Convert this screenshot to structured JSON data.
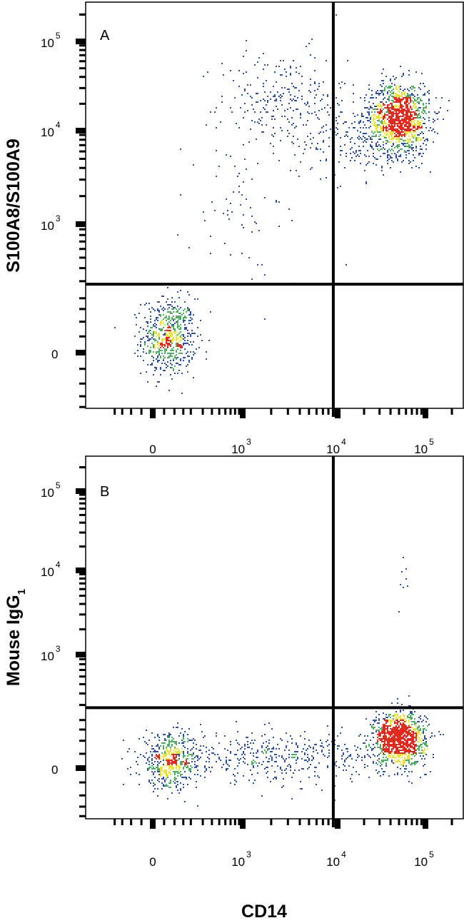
{
  "chart_data": [
    {
      "type": "scatter",
      "panel_label": "A",
      "xlabel": "",
      "ylabel": "S100A8/S100A9",
      "x_scale": "biexponential",
      "y_scale": "biexponential",
      "x_ticks": [
        {
          "base": "0",
          "exp": ""
        },
        {
          "base": "10",
          "exp": "3"
        },
        {
          "base": "10",
          "exp": "4"
        },
        {
          "base": "10",
          "exp": "5"
        }
      ],
      "y_ticks": [
        {
          "base": "0",
          "exp": ""
        },
        {
          "base": "10",
          "exp": "3"
        },
        {
          "base": "10",
          "exp": "4"
        },
        {
          "base": "10",
          "exp": "5"
        }
      ],
      "quadrant_gate": {
        "x": 9000,
        "y": 280
      },
      "populations": [
        {
          "x_center": 70,
          "y_center": 50,
          "count": 650
        },
        {
          "x_center": 2500,
          "y_center": 22000,
          "count": 260
        },
        {
          "x_center": 50000,
          "y_center": 14000,
          "count": 1300
        },
        {
          "x_center": 15000,
          "y_center": 8000,
          "count": 180
        },
        {
          "x_center": 1200,
          "y_center": 1500,
          "count": 70
        }
      ],
      "density_colors": [
        "#2f4fa0",
        "#4fae62",
        "#e8e23a",
        "#e02b1e"
      ]
    },
    {
      "type": "scatter",
      "panel_label": "B",
      "xlabel": "CD14",
      "ylabel": "Mouse IgG",
      "ylabel_sub": "1",
      "x_scale": "biexponential",
      "y_scale": "biexponential",
      "x_ticks": [
        {
          "base": "0",
          "exp": ""
        },
        {
          "base": "10",
          "exp": "3"
        },
        {
          "base": "10",
          "exp": "4"
        },
        {
          "base": "10",
          "exp": "5"
        }
      ],
      "y_ticks": [
        {
          "base": "0",
          "exp": ""
        },
        {
          "base": "10",
          "exp": "3"
        },
        {
          "base": "10",
          "exp": "4"
        },
        {
          "base": "10",
          "exp": "5"
        }
      ],
      "quadrant_gate": {
        "x": 9000,
        "y": 280
      },
      "populations": [
        {
          "x_center": 80,
          "y_center": 25,
          "count": 550
        },
        {
          "x_center": 2500,
          "y_center": 40,
          "count": 420
        },
        {
          "x_center": 50000,
          "y_center": 110,
          "count": 1250
        },
        {
          "x_center": 55000,
          "y_center": 10000,
          "count": 8
        }
      ],
      "density_colors": [
        "#2f4fa0",
        "#4fae62",
        "#e8e23a",
        "#e02b1e"
      ]
    }
  ]
}
